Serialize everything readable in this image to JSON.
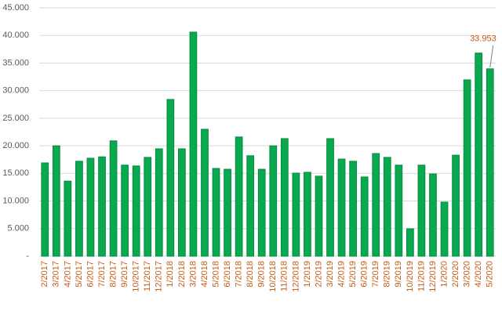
{
  "chart_data": {
    "type": "bar",
    "categories": [
      "2/2017",
      "3/2017",
      "4/2017",
      "5/2017",
      "6/2017",
      "7/2017",
      "8/2017",
      "9/2017",
      "10/2017",
      "11/2017",
      "12/2017",
      "1/2018",
      "2/2018",
      "3/2018",
      "4/2018",
      "5/2018",
      "6/2018",
      "7/2018",
      "8/2018",
      "9/2018",
      "10/2018",
      "11/2018",
      "12/2018",
      "1/2019",
      "2/2019",
      "3/2019",
      "4/2019",
      "5/2019",
      "6/2019",
      "7/2019",
      "8/2019",
      "9/2019",
      "10/2019",
      "11/2019",
      "12/2019",
      "1/2020",
      "2/2020",
      "3/2020",
      "4/2020",
      "5/2020"
    ],
    "values": [
      16900,
      20000,
      13600,
      17200,
      17750,
      18000,
      20900,
      16500,
      16350,
      17900,
      19450,
      28400,
      19450,
      40600,
      23000,
      15900,
      15750,
      21600,
      18200,
      15750,
      20000,
      21300,
      15050,
      15200,
      14500,
      21300,
      17600,
      17200,
      14350,
      18600,
      17900,
      16500,
      4970,
      16500,
      14900,
      9800,
      18300,
      31950,
      36800,
      33953
    ],
    "value_labels": [
      null,
      null,
      null,
      null,
      null,
      null,
      null,
      null,
      null,
      null,
      null,
      null,
      null,
      null,
      null,
      null,
      null,
      null,
      null,
      null,
      null,
      null,
      null,
      null,
      null,
      null,
      null,
      null,
      null,
      null,
      null,
      null,
      null,
      null,
      null,
      null,
      null,
      null,
      null,
      "33.953"
    ],
    "color": "#0aa84f",
    "ylim": [
      0,
      45000
    ],
    "yticks": [
      {
        "value": 0,
        "label": "-"
      },
      {
        "value": 5000,
        "label": "5.000"
      },
      {
        "value": 10000,
        "label": "10.000"
      },
      {
        "value": 15000,
        "label": "15.000"
      },
      {
        "value": 20000,
        "label": "20.000"
      },
      {
        "value": 25000,
        "label": "25.000"
      },
      {
        "value": 30000,
        "label": "30.000"
      },
      {
        "value": 35000,
        "label": "35.000"
      },
      {
        "value": 40000,
        "label": "40.000"
      },
      {
        "value": 45000,
        "label": "45.000"
      }
    ],
    "grid": true
  }
}
